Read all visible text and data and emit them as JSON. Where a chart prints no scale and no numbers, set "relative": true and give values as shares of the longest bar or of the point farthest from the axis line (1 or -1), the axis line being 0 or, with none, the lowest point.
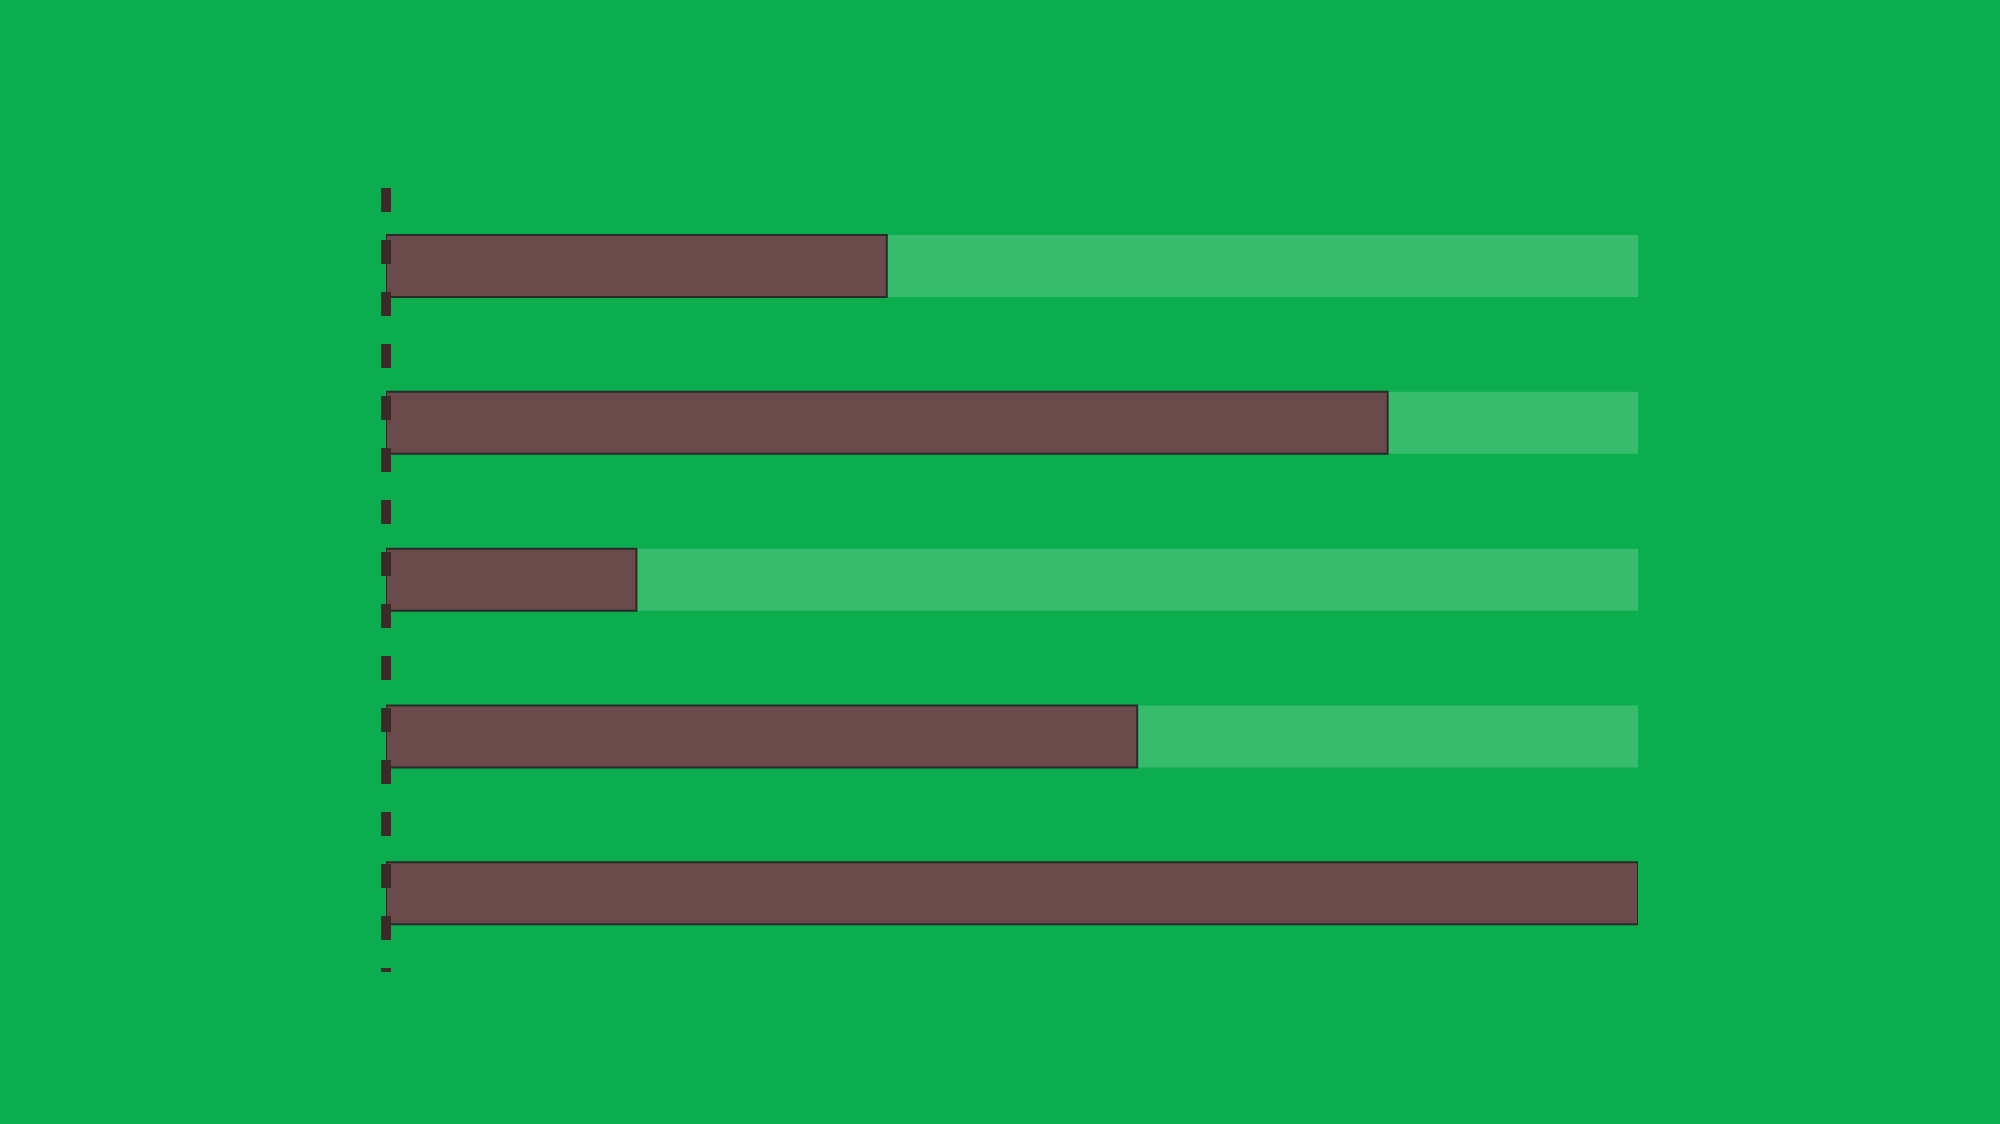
{
  "chart_data": {
    "type": "bar",
    "orientation": "horizontal",
    "relative": true,
    "categories": [
      null,
      null,
      null,
      null,
      null
    ],
    "values": [
      0.4,
      0.8,
      0.2,
      0.6,
      1.0
    ],
    "color": "#6b4a4c"
  }
}
